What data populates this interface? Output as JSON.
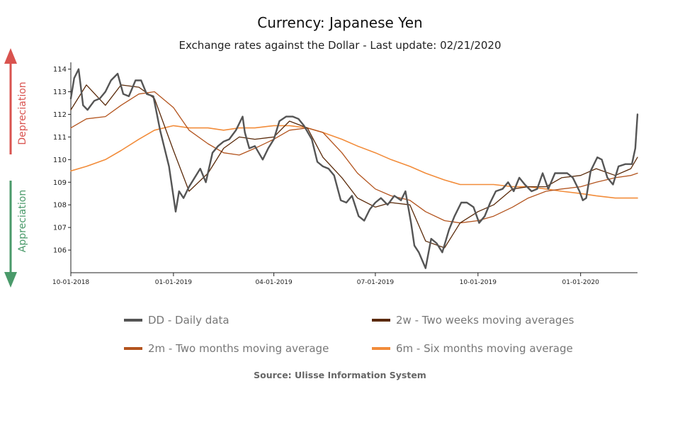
{
  "chart_data": {
    "type": "line",
    "title": "Currency: Japanese Yen",
    "subtitle": "Exchange rates against the Dollar - Last update: 02/21/2020",
    "source": "Source: Ulisse Information System",
    "x_tick_labels": [
      "10-01-2018",
      "01-01-2019",
      "04-01-2019",
      "07-01-2019",
      "10-01-2019",
      "01-01-2020"
    ],
    "x_ticks": [
      "2018-10-01",
      "2019-01-01",
      "2019-04-01",
      "2019-07-01",
      "2019-10-01",
      "2020-01-01"
    ],
    "xlim": [
      "2018-10-01",
      "2020-02-21"
    ],
    "ylim": [
      105,
      114.3
    ],
    "y_ticks": [
      106,
      107,
      108,
      109,
      110,
      111,
      112,
      113,
      114
    ],
    "side_labels": {
      "up": "Depreciation",
      "down": "Appreciation"
    },
    "side_colors": {
      "up": "#d9534f",
      "down": "#4a9a6a"
    },
    "series": [
      {
        "name": "DD - Daily data",
        "color": "#555555",
        "x": [
          "2018-10-01",
          "2018-10-04",
          "2018-10-08",
          "2018-10-12",
          "2018-10-16",
          "2018-10-22",
          "2018-10-27",
          "2018-11-01",
          "2018-11-06",
          "2018-11-12",
          "2018-11-17",
          "2018-11-22",
          "2018-11-28",
          "2018-12-03",
          "2018-12-08",
          "2018-12-14",
          "2018-12-20",
          "2018-12-24",
          "2018-12-28",
          "2019-01-03",
          "2019-01-06",
          "2019-01-10",
          "2019-01-15",
          "2019-01-20",
          "2019-01-25",
          "2019-01-30",
          "2019-02-05",
          "2019-02-10",
          "2019-02-15",
          "2019-02-20",
          "2019-02-26",
          "2019-03-04",
          "2019-03-06",
          "2019-03-10",
          "2019-03-15",
          "2019-03-22",
          "2019-03-27",
          "2019-04-01",
          "2019-04-06",
          "2019-04-12",
          "2019-04-18",
          "2019-04-23",
          "2019-04-28",
          "2019-05-05",
          "2019-05-10",
          "2019-05-15",
          "2019-05-20",
          "2019-05-25",
          "2019-05-31",
          "2019-06-05",
          "2019-06-10",
          "2019-06-16",
          "2019-06-21",
          "2019-06-26",
          "2019-07-01",
          "2019-07-06",
          "2019-07-12",
          "2019-07-18",
          "2019-07-24",
          "2019-07-28",
          "2019-08-02",
          "2019-08-05",
          "2019-08-09",
          "2019-08-15",
          "2019-08-20",
          "2019-08-25",
          "2019-08-30",
          "2019-09-05",
          "2019-09-10",
          "2019-09-16",
          "2019-09-21",
          "2019-09-27",
          "2019-10-02",
          "2019-10-07",
          "2019-10-12",
          "2019-10-17",
          "2019-10-23",
          "2019-10-28",
          "2019-11-02",
          "2019-11-07",
          "2019-11-12",
          "2019-11-18",
          "2019-11-23",
          "2019-11-28",
          "2019-12-03",
          "2019-12-09",
          "2019-12-15",
          "2019-12-20",
          "2019-12-25",
          "2019-12-31",
          "2020-01-03",
          "2020-01-06",
          "2020-01-10",
          "2020-01-16",
          "2020-01-20",
          "2020-01-25",
          "2020-01-30",
          "2020-02-04",
          "2020-02-10",
          "2020-02-16",
          "2020-02-19",
          "2020-02-21"
        ],
        "values": [
          112.7,
          113.6,
          114.0,
          112.4,
          112.2,
          112.6,
          112.7,
          113.0,
          113.5,
          113.8,
          112.9,
          112.8,
          113.5,
          113.5,
          112.9,
          112.8,
          111.3,
          110.5,
          109.7,
          107.7,
          108.6,
          108.3,
          108.8,
          109.2,
          109.6,
          109.0,
          110.3,
          110.6,
          110.8,
          110.9,
          111.3,
          111.9,
          111.2,
          110.5,
          110.6,
          110.0,
          110.5,
          110.9,
          111.7,
          111.9,
          111.9,
          111.8,
          111.5,
          110.9,
          109.9,
          109.7,
          109.6,
          109.3,
          108.2,
          108.1,
          108.4,
          107.5,
          107.3,
          107.8,
          108.1,
          108.3,
          108.0,
          108.4,
          108.2,
          108.6,
          107.2,
          106.2,
          105.9,
          105.2,
          106.5,
          106.3,
          105.9,
          106.9,
          107.5,
          108.1,
          108.1,
          107.9,
          107.2,
          107.5,
          108.1,
          108.6,
          108.7,
          109.0,
          108.6,
          109.2,
          108.9,
          108.6,
          108.7,
          109.4,
          108.7,
          109.4,
          109.4,
          109.4,
          109.2,
          108.6,
          108.2,
          108.3,
          109.5,
          110.1,
          110.0,
          109.2,
          108.9,
          109.7,
          109.8,
          109.8,
          110.5,
          112.0
        ]
      },
      {
        "name": "2w - Two weeks moving averages",
        "color": "#5a2a0a",
        "x": [
          "2018-10-01",
          "2018-10-15",
          "2018-11-01",
          "2018-11-15",
          "2018-12-01",
          "2018-12-15",
          "2019-01-01",
          "2019-01-15",
          "2019-02-01",
          "2019-02-15",
          "2019-03-01",
          "2019-03-15",
          "2019-04-01",
          "2019-04-15",
          "2019-05-01",
          "2019-05-15",
          "2019-06-01",
          "2019-06-15",
          "2019-07-01",
          "2019-07-15",
          "2019-08-01",
          "2019-08-15",
          "2019-09-01",
          "2019-09-15",
          "2019-10-01",
          "2019-10-15",
          "2019-11-01",
          "2019-11-15",
          "2019-12-01",
          "2019-12-15",
          "2020-01-01",
          "2020-01-15",
          "2020-02-01",
          "2020-02-15",
          "2020-02-21"
        ],
        "values": [
          112.2,
          113.3,
          112.4,
          113.3,
          113.2,
          112.7,
          110.4,
          108.6,
          109.4,
          110.5,
          111.0,
          110.9,
          111.0,
          111.7,
          111.4,
          110.1,
          109.2,
          108.3,
          107.9,
          108.1,
          108.0,
          106.4,
          106.1,
          107.2,
          107.7,
          108.0,
          108.7,
          108.8,
          108.8,
          109.2,
          109.3,
          109.6,
          109.3,
          109.6,
          110.1
        ]
      },
      {
        "name": "2m - Two months moving average",
        "color": "#b3541e",
        "x": [
          "2018-10-01",
          "2018-10-15",
          "2018-11-01",
          "2018-11-15",
          "2018-12-01",
          "2018-12-15",
          "2019-01-01",
          "2019-01-15",
          "2019-02-01",
          "2019-02-15",
          "2019-03-01",
          "2019-03-15",
          "2019-04-01",
          "2019-04-15",
          "2019-05-01",
          "2019-05-15",
          "2019-06-01",
          "2019-06-15",
          "2019-07-01",
          "2019-07-15",
          "2019-08-01",
          "2019-08-15",
          "2019-09-01",
          "2019-09-15",
          "2019-10-01",
          "2019-10-15",
          "2019-11-01",
          "2019-11-15",
          "2019-12-01",
          "2019-12-15",
          "2020-01-01",
          "2020-01-15",
          "2020-02-01",
          "2020-02-15",
          "2020-02-21"
        ],
        "values": [
          111.4,
          111.8,
          111.9,
          112.4,
          112.9,
          113.0,
          112.3,
          111.3,
          110.7,
          110.3,
          110.2,
          110.5,
          110.9,
          111.3,
          111.4,
          111.2,
          110.3,
          109.4,
          108.7,
          108.4,
          108.2,
          107.7,
          107.3,
          107.2,
          107.3,
          107.5,
          107.9,
          108.3,
          108.6,
          108.7,
          108.8,
          109.0,
          109.2,
          109.3,
          109.4
        ]
      },
      {
        "name": "6m - Six months moving average",
        "color": "#f28c3a",
        "x": [
          "2018-10-01",
          "2018-10-15",
          "2018-11-01",
          "2018-11-15",
          "2018-12-01",
          "2018-12-15",
          "2019-01-01",
          "2019-01-15",
          "2019-02-01",
          "2019-02-15",
          "2019-03-01",
          "2019-03-15",
          "2019-04-01",
          "2019-04-15",
          "2019-05-01",
          "2019-05-15",
          "2019-06-01",
          "2019-06-15",
          "2019-07-01",
          "2019-07-15",
          "2019-08-01",
          "2019-08-15",
          "2019-09-01",
          "2019-09-15",
          "2019-10-01",
          "2019-10-15",
          "2019-11-01",
          "2019-11-15",
          "2019-12-01",
          "2019-12-15",
          "2020-01-01",
          "2020-01-15",
          "2020-02-01",
          "2020-02-15",
          "2020-02-21"
        ],
        "values": [
          109.5,
          109.7,
          110.0,
          110.4,
          110.9,
          111.3,
          111.5,
          111.4,
          111.4,
          111.3,
          111.4,
          111.4,
          111.5,
          111.5,
          111.4,
          111.2,
          110.9,
          110.6,
          110.3,
          110.0,
          109.7,
          109.4,
          109.1,
          108.9,
          108.9,
          108.9,
          108.8,
          108.8,
          108.7,
          108.6,
          108.5,
          108.4,
          108.3,
          108.3,
          108.3
        ]
      }
    ],
    "legend": [
      {
        "label": "DD - Daily data",
        "color": "#555555"
      },
      {
        "label": "2w - Two weeks moving averages",
        "color": "#5a2a0a"
      },
      {
        "label": "2m - Two months moving average",
        "color": "#b3541e"
      },
      {
        "label": "6m - Six months moving average",
        "color": "#f28c3a"
      }
    ]
  }
}
